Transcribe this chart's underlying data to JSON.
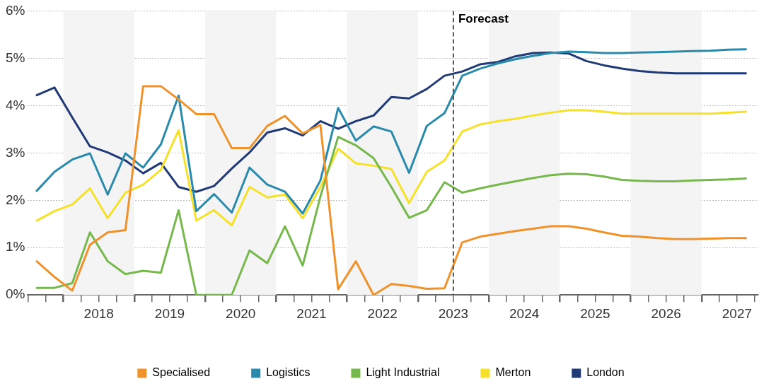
{
  "chart_data": {
    "type": "line",
    "x": [
      2017.625,
      2017.875,
      2018.125,
      2018.375,
      2018.625,
      2018.875,
      2019.125,
      2019.375,
      2019.625,
      2019.875,
      2020.125,
      2020.375,
      2020.625,
      2020.875,
      2021.125,
      2021.375,
      2021.625,
      2021.875,
      2022.125,
      2022.375,
      2022.625,
      2022.875,
      2023.125,
      2023.375,
      2023.625,
      2023.875,
      2024.125,
      2024.375,
      2024.625,
      2024.875,
      2025.125,
      2025.375,
      2025.625,
      2025.875,
      2026.125,
      2026.375,
      2026.625,
      2026.875,
      2027.125,
      2027.375,
      2027.625
    ],
    "series": [
      {
        "name": "Specialised",
        "color": "#f0922b",
        "values": [
          0.71,
          0.38,
          0.09,
          1.06,
          1.32,
          1.37,
          4.41,
          4.41,
          4.13,
          3.82,
          3.82,
          3.1,
          3.1,
          3.57,
          3.78,
          3.41,
          3.59,
          0.12,
          0.71,
          0.0,
          0.23,
          0.19,
          0.13,
          0.14,
          1.11,
          1.23,
          1.29,
          1.35,
          1.4,
          1.45,
          1.45,
          1.4,
          1.32,
          1.25,
          1.23,
          1.2,
          1.18,
          1.18,
          1.19,
          1.2,
          1.2
        ]
      },
      {
        "name": "Logistics",
        "color": "#2a8aab",
        "values": [
          2.2,
          2.6,
          2.86,
          2.99,
          2.12,
          2.99,
          2.69,
          3.18,
          4.21,
          1.77,
          2.13,
          1.74,
          2.69,
          2.33,
          2.18,
          1.72,
          2.42,
          3.95,
          3.26,
          3.56,
          3.45,
          2.58,
          3.57,
          3.84,
          4.63,
          4.78,
          4.89,
          4.98,
          5.05,
          5.11,
          5.14,
          5.13,
          5.11,
          5.11,
          5.12,
          5.13,
          5.14,
          5.15,
          5.16,
          5.18,
          5.19
        ]
      },
      {
        "name": "Light Industrial",
        "color": "#76b84b",
        "values": [
          0.15,
          0.15,
          0.25,
          1.32,
          0.71,
          0.44,
          0.51,
          0.47,
          1.79,
          0.0,
          0.0,
          0.0,
          0.94,
          0.67,
          1.45,
          0.62,
          2.08,
          3.34,
          3.16,
          2.89,
          2.28,
          1.63,
          1.79,
          2.38,
          2.16,
          2.25,
          2.33,
          2.4,
          2.47,
          2.53,
          2.56,
          2.55,
          2.5,
          2.43,
          2.41,
          2.4,
          2.4,
          2.42,
          2.43,
          2.44,
          2.46
        ]
      },
      {
        "name": "Merton",
        "color": "#f5e02a",
        "values": [
          1.57,
          1.77,
          1.91,
          2.25,
          1.62,
          2.16,
          2.33,
          2.64,
          3.48,
          1.57,
          1.79,
          1.47,
          2.28,
          2.06,
          2.12,
          1.62,
          2.28,
          3.09,
          2.78,
          2.73,
          2.66,
          1.94,
          2.6,
          2.84,
          3.45,
          3.6,
          3.67,
          3.72,
          3.79,
          3.85,
          3.9,
          3.9,
          3.87,
          3.83,
          3.83,
          3.83,
          3.83,
          3.83,
          3.83,
          3.85,
          3.87
        ]
      },
      {
        "name": "London",
        "color": "#1f3a75",
        "values": [
          4.22,
          4.38,
          3.75,
          3.14,
          3.01,
          2.84,
          2.57,
          2.79,
          2.28,
          2.18,
          2.3,
          2.67,
          3.01,
          3.43,
          3.52,
          3.37,
          3.67,
          3.51,
          3.67,
          3.79,
          4.18,
          4.15,
          4.35,
          4.63,
          4.72,
          4.87,
          4.92,
          5.04,
          5.11,
          5.12,
          5.1,
          4.94,
          4.85,
          4.78,
          4.73,
          4.7,
          4.68,
          4.68,
          4.68,
          4.68,
          4.68
        ]
      }
    ],
    "xlim": [
      2017.5,
      2027.8
    ],
    "xticks": [
      {
        "value": 2017.5,
        "label": null
      },
      {
        "value": 2017.75,
        "label": null
      },
      {
        "value": 2018,
        "label": null
      },
      {
        "value": 2018.25,
        "label": null
      },
      {
        "value": 2018.5,
        "label": "2018"
      },
      {
        "value": 2018.75,
        "label": null
      },
      {
        "value": 2019,
        "label": null
      },
      {
        "value": 2019.25,
        "label": null
      },
      {
        "value": 2019.5,
        "label": "2019"
      },
      {
        "value": 2019.75,
        "label": null
      },
      {
        "value": 2020,
        "label": null
      },
      {
        "value": 2020.25,
        "label": null
      },
      {
        "value": 2020.5,
        "label": "2020"
      },
      {
        "value": 2020.75,
        "label": null
      },
      {
        "value": 2021,
        "label": null
      },
      {
        "value": 2021.25,
        "label": null
      },
      {
        "value": 2021.5,
        "label": "2021"
      },
      {
        "value": 2021.75,
        "label": null
      },
      {
        "value": 2022,
        "label": null
      },
      {
        "value": 2022.25,
        "label": null
      },
      {
        "value": 2022.5,
        "label": "2022"
      },
      {
        "value": 2022.75,
        "label": null
      },
      {
        "value": 2023,
        "label": null
      },
      {
        "value": 2023.25,
        "label": null
      },
      {
        "value": 2023.5,
        "label": "2023"
      },
      {
        "value": 2023.75,
        "label": null
      },
      {
        "value": 2024,
        "label": null
      },
      {
        "value": 2024.25,
        "label": null
      },
      {
        "value": 2024.5,
        "label": "2024"
      },
      {
        "value": 2024.75,
        "label": null
      },
      {
        "value": 2025,
        "label": null
      },
      {
        "value": 2025.25,
        "label": null
      },
      {
        "value": 2025.5,
        "label": "2025"
      },
      {
        "value": 2025.75,
        "label": null
      },
      {
        "value": 2026,
        "label": null
      },
      {
        "value": 2026.25,
        "label": null
      },
      {
        "value": 2026.5,
        "label": "2026"
      },
      {
        "value": 2026.75,
        "label": null
      },
      {
        "value": 2027,
        "label": null
      },
      {
        "value": 2027.25,
        "label": null
      },
      {
        "value": 2027.5,
        "label": "2027"
      },
      {
        "value": 2027.75,
        "label": null
      }
    ],
    "ylim": [
      0,
      6
    ],
    "yticks": [
      {
        "value": 0,
        "label": "0%"
      },
      {
        "value": 1,
        "label": "1%"
      },
      {
        "value": 2,
        "label": "2%"
      },
      {
        "value": 3,
        "label": "3%"
      },
      {
        "value": 4,
        "label": "4%"
      },
      {
        "value": 5,
        "label": "5%"
      },
      {
        "value": 6,
        "label": "6%"
      }
    ],
    "grid": "y",
    "legend": "bottom",
    "marker": "none",
    "line_style": "solid",
    "ref_lines": [
      {
        "axis": "x",
        "value": 2023.5,
        "label": "Forecast",
        "color": "#555555",
        "line_style": "dashed"
      }
    ],
    "bands": [
      {
        "axis": "x",
        "from": 2018,
        "to": 2019,
        "color": "#f4f4f4"
      },
      {
        "axis": "x",
        "from": 2020,
        "to": 2021,
        "color": "#f4f4f4"
      },
      {
        "axis": "x",
        "from": 2022,
        "to": 2023,
        "color": "#f4f4f4"
      },
      {
        "axis": "x",
        "from": 2024,
        "to": 2025,
        "color": "#f4f4f4"
      },
      {
        "axis": "x",
        "from": 2026,
        "to": 2027,
        "color": "#f4f4f4"
      }
    ]
  }
}
